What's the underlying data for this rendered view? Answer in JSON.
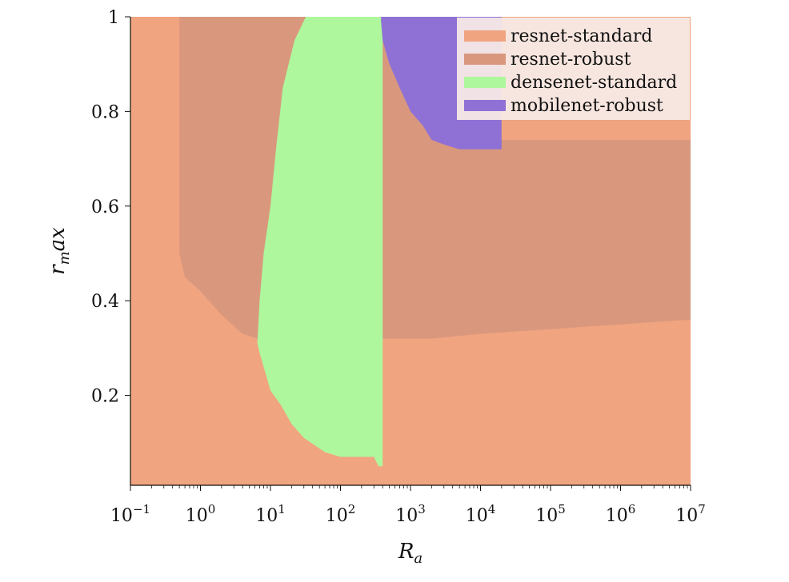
{
  "chart_data": {
    "type": "area",
    "title": "",
    "xlabel_base": "R",
    "xlabel_sub": "a",
    "ylabel_r": "r",
    "ylabel_sub": "m",
    "ylabel_rest": "ax",
    "x_scale": "log",
    "xlim": [
      0.1,
      10000000
    ],
    "ylim": [
      0.01,
      1.0
    ],
    "x_ticks": [
      {
        "value": 0.1,
        "base": "10",
        "exp": "−1"
      },
      {
        "value": 1,
        "base": "10",
        "exp": "0"
      },
      {
        "value": 10,
        "base": "10",
        "exp": "1"
      },
      {
        "value": 100,
        "base": "10",
        "exp": "2"
      },
      {
        "value": 1000,
        "base": "10",
        "exp": "3"
      },
      {
        "value": 10000,
        "base": "10",
        "exp": "4"
      },
      {
        "value": 100000,
        "base": "10",
        "exp": "5"
      },
      {
        "value": 1000000,
        "base": "10",
        "exp": "6"
      },
      {
        "value": 10000000,
        "base": "10",
        "exp": "7"
      }
    ],
    "y_ticks": [
      {
        "value": 0.2,
        "label": "0.2"
      },
      {
        "value": 0.4,
        "label": "0.4"
      },
      {
        "value": 0.6,
        "label": "0.6"
      },
      {
        "value": 0.8,
        "label": "0.8"
      },
      {
        "value": 1.0,
        "label": "1"
      }
    ],
    "grid": false,
    "legend_position": "top-right",
    "series": [
      {
        "name": "resnet-standard",
        "color": "#f0a47f",
        "region": [
          [
            0.1,
            0.01
          ],
          [
            10000000,
            0.01
          ],
          [
            10000000,
            1.0
          ],
          [
            0.1,
            1.0
          ]
        ]
      },
      {
        "name": "resnet-robust",
        "color": "#d9987e",
        "region": [
          [
            0.5,
            1.0
          ],
          [
            0.5,
            0.5
          ],
          [
            0.6,
            0.45
          ],
          [
            1,
            0.42
          ],
          [
            2,
            0.37
          ],
          [
            4,
            0.33
          ],
          [
            6.5,
            0.32
          ],
          [
            7,
            0.3
          ],
          [
            300,
            0.3
          ],
          [
            400,
            0.32
          ],
          [
            2000,
            0.32
          ],
          [
            10000,
            0.33
          ],
          [
            100000,
            0.34
          ],
          [
            1000000,
            0.35
          ],
          [
            10000000,
            0.36
          ],
          [
            10000000,
            0.74
          ],
          [
            20000,
            0.74
          ],
          [
            20000,
            1.0
          ]
        ]
      },
      {
        "name": "densenet-standard",
        "color": "#aef79c",
        "region": [
          [
            6.5,
            0.31
          ],
          [
            7,
            0.4
          ],
          [
            8,
            0.5
          ],
          [
            10,
            0.6
          ],
          [
            12,
            0.72
          ],
          [
            15,
            0.85
          ],
          [
            22,
            0.95
          ],
          [
            32,
            1.0
          ],
          [
            200,
            1.0
          ],
          [
            400,
            1.0
          ],
          [
            400,
            0.05
          ],
          [
            350,
            0.05
          ],
          [
            300,
            0.07
          ],
          [
            200,
            0.07
          ],
          [
            100,
            0.07
          ],
          [
            60,
            0.08
          ],
          [
            30,
            0.11
          ],
          [
            20,
            0.14
          ],
          [
            14,
            0.18
          ],
          [
            10,
            0.21
          ],
          [
            8,
            0.26
          ],
          [
            7,
            0.29
          ]
        ]
      },
      {
        "name": "mobilenet-robust",
        "color": "#8f71d6",
        "region": [
          [
            380,
            1.0
          ],
          [
            20000,
            1.0
          ],
          [
            20000,
            0.72
          ],
          [
            10000,
            0.72
          ],
          [
            5000,
            0.72
          ],
          [
            3000,
            0.73
          ],
          [
            2000,
            0.74
          ],
          [
            1500,
            0.77
          ],
          [
            1000,
            0.8
          ],
          [
            700,
            0.85
          ],
          [
            500,
            0.9
          ],
          [
            400,
            0.95
          ],
          [
            380,
            0.99
          ]
        ]
      }
    ]
  }
}
